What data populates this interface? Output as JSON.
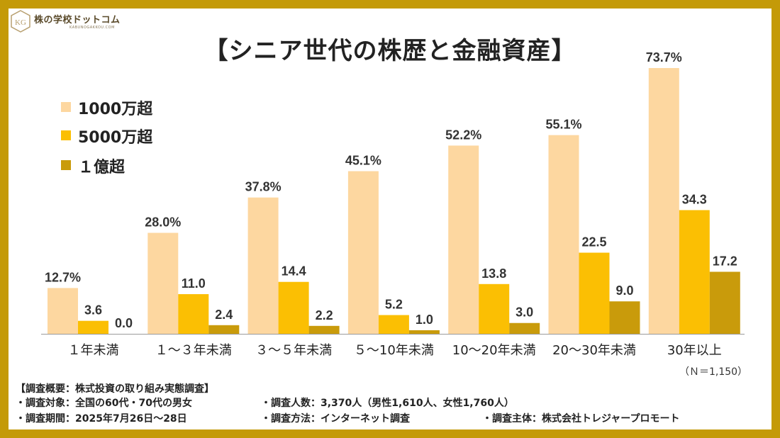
{
  "logo": {
    "name": "株の学校ドットコム",
    "sub": "KABUNOGAKKOU.COM",
    "mark_text": "KG"
  },
  "chart_data": {
    "type": "bar",
    "title": "【シニア世代の株歴と金融資産】",
    "categories": [
      "１年未満",
      "１～３年未満",
      "３～５年未満",
      "５～10年未満",
      "10～20年未満",
      "20～30年未満",
      "30年以上"
    ],
    "series": [
      {
        "name": "1000万超",
        "color": "#fdd7a0",
        "values": [
          12.7,
          28.0,
          37.8,
          45.1,
          52.2,
          55.1,
          73.7
        ],
        "labels": [
          "12.7%",
          "28.0%",
          "37.8%",
          "45.1%",
          "52.2%",
          "55.1%",
          "73.7%"
        ]
      },
      {
        "name": "5000万超",
        "color": "#fbbf03",
        "values": [
          3.6,
          11.0,
          14.4,
          5.2,
          13.8,
          22.5,
          34.3
        ],
        "labels": [
          "3.6",
          "11.0",
          "14.4",
          "5.2",
          "13.8",
          "22.5",
          "34.3"
        ]
      },
      {
        "name": "１億超",
        "color": "#c99b0b",
        "values": [
          0.0,
          2.4,
          2.2,
          1.0,
          3.0,
          9.0,
          17.2
        ],
        "labels": [
          "0.0",
          "2.4",
          "2.2",
          "1.0",
          "3.0",
          "9.0",
          "17.2"
        ]
      }
    ],
    "ylim": [
      0,
      75
    ],
    "xlabel": "",
    "ylabel": "",
    "grid": false,
    "legend_position": "top-left",
    "sample_note": "（Ｎ＝1,150）"
  },
  "notes": {
    "heading": "【調査概要：株式投資の取り組み実態調査】",
    "target": "・調査対象：全国の60代・70代の男女",
    "count": "・調査人数：3,370人（男性1,610人、女性1,760人）",
    "period": "・調査期間：2025年7月26日～28日",
    "method": "・調査方法：インターネット調査",
    "sponsor": "・調査主体：株式会社トレジャープロモート"
  }
}
